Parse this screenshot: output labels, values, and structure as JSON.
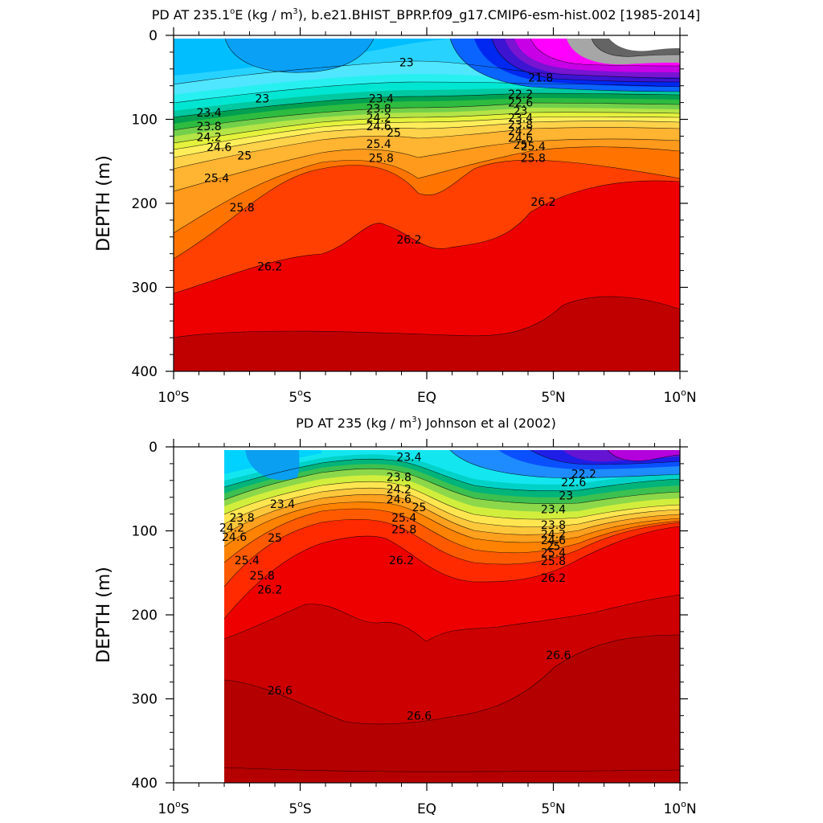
{
  "chart_data": [
    {
      "type": "contour",
      "title_main": "PD AT 235.1",
      "title_sup_o": "o",
      "title_mid": "E (kg / m",
      "title_sup_3": "3",
      "title_rest": "), b.e21.BHIST_BPRP.f09_g17.CMIP6-esm-hist.002 [1985-2014]",
      "ylabel": "DEPTH (m)",
      "ylim": [
        0,
        400
      ],
      "xlim": [
        -10,
        10
      ],
      "y_ticks": [
        "0",
        "100",
        "200",
        "300",
        "400"
      ],
      "x_ticks": [
        {
          "value": -10,
          "label": "10",
          "sup": "o",
          "suffix": "S"
        },
        {
          "value": -5,
          "label": "5",
          "sup": "o",
          "suffix": "S"
        },
        {
          "value": 0,
          "label": "EQ",
          "sup": "",
          "suffix": ""
        },
        {
          "value": 5,
          "label": "5",
          "sup": "o",
          "suffix": "N"
        },
        {
          "value": 10,
          "label": "10",
          "sup": "o",
          "suffix": "N"
        }
      ],
      "contour_labels": [
        {
          "text": "23",
          "lat": -6.5,
          "depth": 75
        },
        {
          "text": "23",
          "lat": -0.8,
          "depth": 32
        },
        {
          "text": "23.4",
          "lat": -8.6,
          "depth": 92
        },
        {
          "text": "23.8",
          "lat": -8.6,
          "depth": 108
        },
        {
          "text": "24.2",
          "lat": -8.6,
          "depth": 121
        },
        {
          "text": "24.6",
          "lat": -8.2,
          "depth": 133
        },
        {
          "text": "25",
          "lat": -7.2,
          "depth": 143
        },
        {
          "text": "25.4",
          "lat": -8.3,
          "depth": 170
        },
        {
          "text": "25.8",
          "lat": -7.3,
          "depth": 205
        },
        {
          "text": "26.2",
          "lat": -6.2,
          "depth": 275
        },
        {
          "text": "23.4",
          "lat": -1.8,
          "depth": 75
        },
        {
          "text": "23.8",
          "lat": -1.9,
          "depth": 87
        },
        {
          "text": "24.2",
          "lat": -1.9,
          "depth": 98
        },
        {
          "text": "24.6",
          "lat": -1.9,
          "depth": 108
        },
        {
          "text": "25",
          "lat": -1.3,
          "depth": 116
        },
        {
          "text": "25.4",
          "lat": -1.9,
          "depth": 129
        },
        {
          "text": "25.8",
          "lat": -1.8,
          "depth": 146
        },
        {
          "text": "26.2",
          "lat": -0.7,
          "depth": 243
        },
        {
          "text": "21.8",
          "lat": 4.5,
          "depth": 50
        },
        {
          "text": "22.2",
          "lat": 3.7,
          "depth": 70
        },
        {
          "text": "22.6",
          "lat": 3.7,
          "depth": 80
        },
        {
          "text": "23",
          "lat": 3.7,
          "depth": 90
        },
        {
          "text": "23.4",
          "lat": 3.7,
          "depth": 98
        },
        {
          "text": "23.8",
          "lat": 3.7,
          "depth": 106
        },
        {
          "text": "24.2",
          "lat": 3.7,
          "depth": 114
        },
        {
          "text": "24.6",
          "lat": 3.7,
          "depth": 122
        },
        {
          "text": "25",
          "lat": 3.7,
          "depth": 130
        },
        {
          "text": "25.4",
          "lat": 4.2,
          "depth": 132
        },
        {
          "text": "25.8",
          "lat": 4.2,
          "depth": 146
        },
        {
          "text": "26.2",
          "lat": 4.6,
          "depth": 198
        }
      ]
    },
    {
      "type": "contour",
      "title_main": "PD AT 235 (kg / m",
      "title_sup_3": "3",
      "title_rest": ") Johnson et al (2002)",
      "ylabel": "DEPTH (m)",
      "ylim": [
        0,
        400
      ],
      "xlim": [
        -10,
        10
      ],
      "data_start_lat": -8,
      "y_ticks": [
        "0",
        "100",
        "200",
        "300",
        "400"
      ],
      "x_ticks": [
        {
          "value": -10,
          "label": "10",
          "sup": "o",
          "suffix": "S"
        },
        {
          "value": -5,
          "label": "5",
          "sup": "o",
          "suffix": "S"
        },
        {
          "value": 0,
          "label": "EQ",
          "sup": "",
          "suffix": ""
        },
        {
          "value": 5,
          "label": "5",
          "sup": "o",
          "suffix": "N"
        },
        {
          "value": 10,
          "label": "10",
          "sup": "o",
          "suffix": "N"
        }
      ],
      "contour_labels": [
        {
          "text": "23.4",
          "lat": -5.7,
          "depth": 68
        },
        {
          "text": "23.8",
          "lat": -7.3,
          "depth": 84
        },
        {
          "text": "24.2",
          "lat": -7.7,
          "depth": 96
        },
        {
          "text": "24.6",
          "lat": -7.6,
          "depth": 107
        },
        {
          "text": "25",
          "lat": -6.0,
          "depth": 108
        },
        {
          "text": "25.4",
          "lat": -7.1,
          "depth": 135
        },
        {
          "text": "25.8",
          "lat": -6.5,
          "depth": 153
        },
        {
          "text": "26.2",
          "lat": -6.2,
          "depth": 170
        },
        {
          "text": "23.4",
          "lat": -0.7,
          "depth": 12
        },
        {
          "text": "23.8",
          "lat": -1.1,
          "depth": 36
        },
        {
          "text": "24.2",
          "lat": -1.1,
          "depth": 50
        },
        {
          "text": "24.6",
          "lat": -1.1,
          "depth": 62
        },
        {
          "text": "25",
          "lat": -0.3,
          "depth": 72
        },
        {
          "text": "25.4",
          "lat": -0.9,
          "depth": 84
        },
        {
          "text": "25.8",
          "lat": -0.9,
          "depth": 98
        },
        {
          "text": "26.2",
          "lat": -1.0,
          "depth": 135
        },
        {
          "text": "22.2",
          "lat": 6.2,
          "depth": 32
        },
        {
          "text": "22.6",
          "lat": 5.8,
          "depth": 42
        },
        {
          "text": "23",
          "lat": 5.5,
          "depth": 58
        },
        {
          "text": "23.4",
          "lat": 5.0,
          "depth": 74
        },
        {
          "text": "23.8",
          "lat": 5.0,
          "depth": 93
        },
        {
          "text": "24.2",
          "lat": 5.0,
          "depth": 104
        },
        {
          "text": "24.6",
          "lat": 5.0,
          "depth": 111
        },
        {
          "text": "25",
          "lat": 5.0,
          "depth": 118
        },
        {
          "text": "25.4",
          "lat": 5.0,
          "depth": 126
        },
        {
          "text": "25.8",
          "lat": 5.0,
          "depth": 136
        },
        {
          "text": "26.2",
          "lat": 5.0,
          "depth": 156
        },
        {
          "text": "26.6",
          "lat": 5.2,
          "depth": 248
        },
        {
          "text": "26.6",
          "lat": -5.8,
          "depth": 290
        },
        {
          "text": "26.6",
          "lat": -0.3,
          "depth": 320
        }
      ]
    }
  ]
}
